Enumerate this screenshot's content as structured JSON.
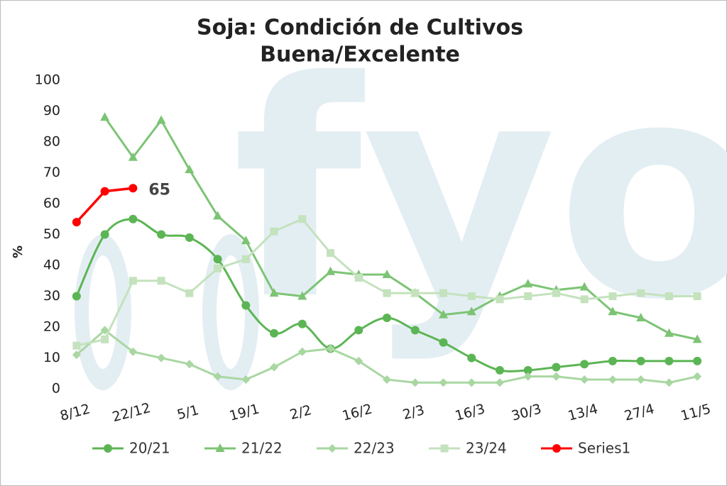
{
  "chart_data": {
    "type": "line",
    "title": [
      "Soja: Condición de Cultivos",
      "Buena/Excelente"
    ],
    "ylabel": "%",
    "watermark": "fyo",
    "categories": [
      "8/12",
      null,
      "22/12",
      null,
      "5/1",
      null,
      "19/1",
      null,
      "2/2",
      null,
      "16/2",
      null,
      "2/3",
      null,
      "16/3",
      null,
      "30/3",
      null,
      "13/4",
      null,
      "27/4",
      null,
      "11/5"
    ],
    "ylim": [
      0,
      100
    ],
    "yticks": [
      0,
      10,
      20,
      30,
      40,
      50,
      60,
      70,
      80,
      90,
      100
    ],
    "grid": false,
    "legend": "bottom",
    "series": [
      {
        "name": "20/21",
        "color": "#5cb554",
        "marker": "circle",
        "smooth": true,
        "values": [
          30,
          50,
          55,
          50,
          49,
          42,
          27,
          18,
          21,
          13,
          19,
          23,
          19,
          15,
          10,
          6,
          6,
          7,
          8,
          9,
          9,
          9,
          9
        ]
      },
      {
        "name": "21/22",
        "color": "#7cc474",
        "marker": "triangle",
        "values": [
          null,
          88,
          75,
          87,
          71,
          56,
          48,
          31,
          30,
          38,
          37,
          37,
          31,
          24,
          25,
          30,
          34,
          32,
          33,
          25,
          23,
          18,
          16
        ]
      },
      {
        "name": "22/23",
        "color": "#a9d7a2",
        "marker": "diamond",
        "values": [
          11,
          19,
          12,
          10,
          8,
          4,
          3,
          7,
          12,
          13,
          9,
          3,
          2,
          2,
          2,
          2,
          4,
          4,
          3,
          3,
          3,
          2,
          4
        ]
      },
      {
        "name": "23/24",
        "color": "#c4e2bd",
        "marker": "square",
        "values": [
          14,
          16,
          35,
          35,
          31,
          39,
          42,
          51,
          55,
          44,
          36,
          31,
          31,
          31,
          30,
          29,
          30,
          31,
          29,
          30,
          31,
          30,
          30
        ]
      },
      {
        "name": "Series1",
        "color": "#ff0000",
        "marker": "circle",
        "values": [
          54,
          64,
          65,
          null,
          null,
          null,
          null,
          null,
          null,
          null,
          null,
          null,
          null,
          null,
          null,
          null,
          null,
          null,
          null,
          null,
          null,
          null,
          null
        ]
      }
    ]
  }
}
